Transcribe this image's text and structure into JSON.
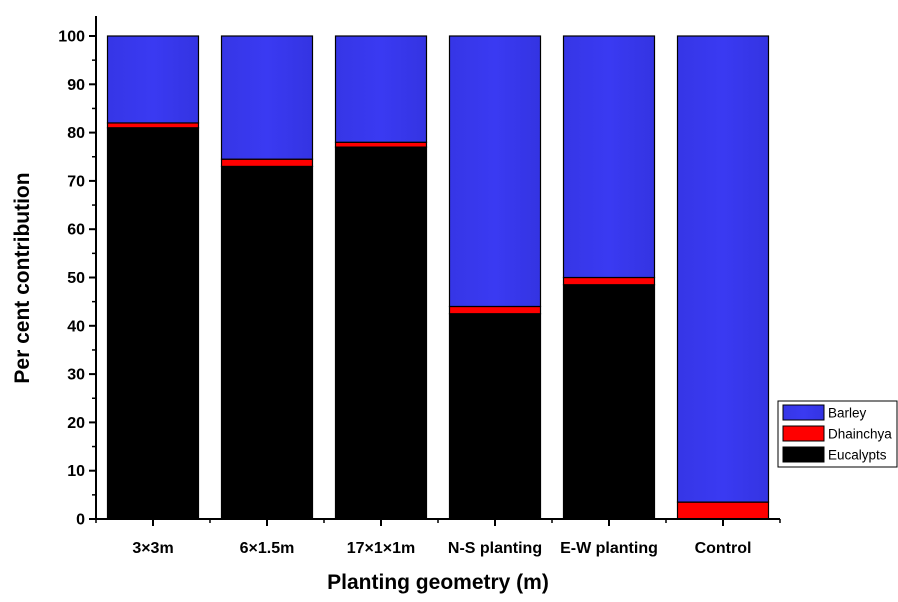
{
  "chart_data": {
    "type": "bar",
    "stacked": true,
    "title": "",
    "xlabel": "Planting geometry (m)",
    "ylabel": "Per cent contribution",
    "categories": [
      "3×3m",
      "6×1.5m",
      "17×1×1m",
      "N-S planting",
      "E-W planting",
      "Control"
    ],
    "ylim": [
      0,
      100
    ],
    "yticks": [
      0,
      10,
      20,
      30,
      40,
      50,
      60,
      70,
      80,
      90,
      100
    ],
    "series": [
      {
        "name": "Eucalypts",
        "color": "#000000",
        "values": [
          81,
          73,
          77,
          42.5,
          48.5,
          0
        ]
      },
      {
        "name": "Dhainchya",
        "color": "#ff0000",
        "values": [
          1,
          1.5,
          1,
          1.5,
          1.5,
          3.5
        ]
      },
      {
        "name": "Barley",
        "color": "#3333ee",
        "values": [
          18,
          25.5,
          22,
          56,
          50,
          96.5
        ]
      }
    ],
    "legend": {
      "placement": "right",
      "order": [
        "Barley",
        "Dhainchya",
        "Eucalypts"
      ]
    },
    "grid": false
  }
}
